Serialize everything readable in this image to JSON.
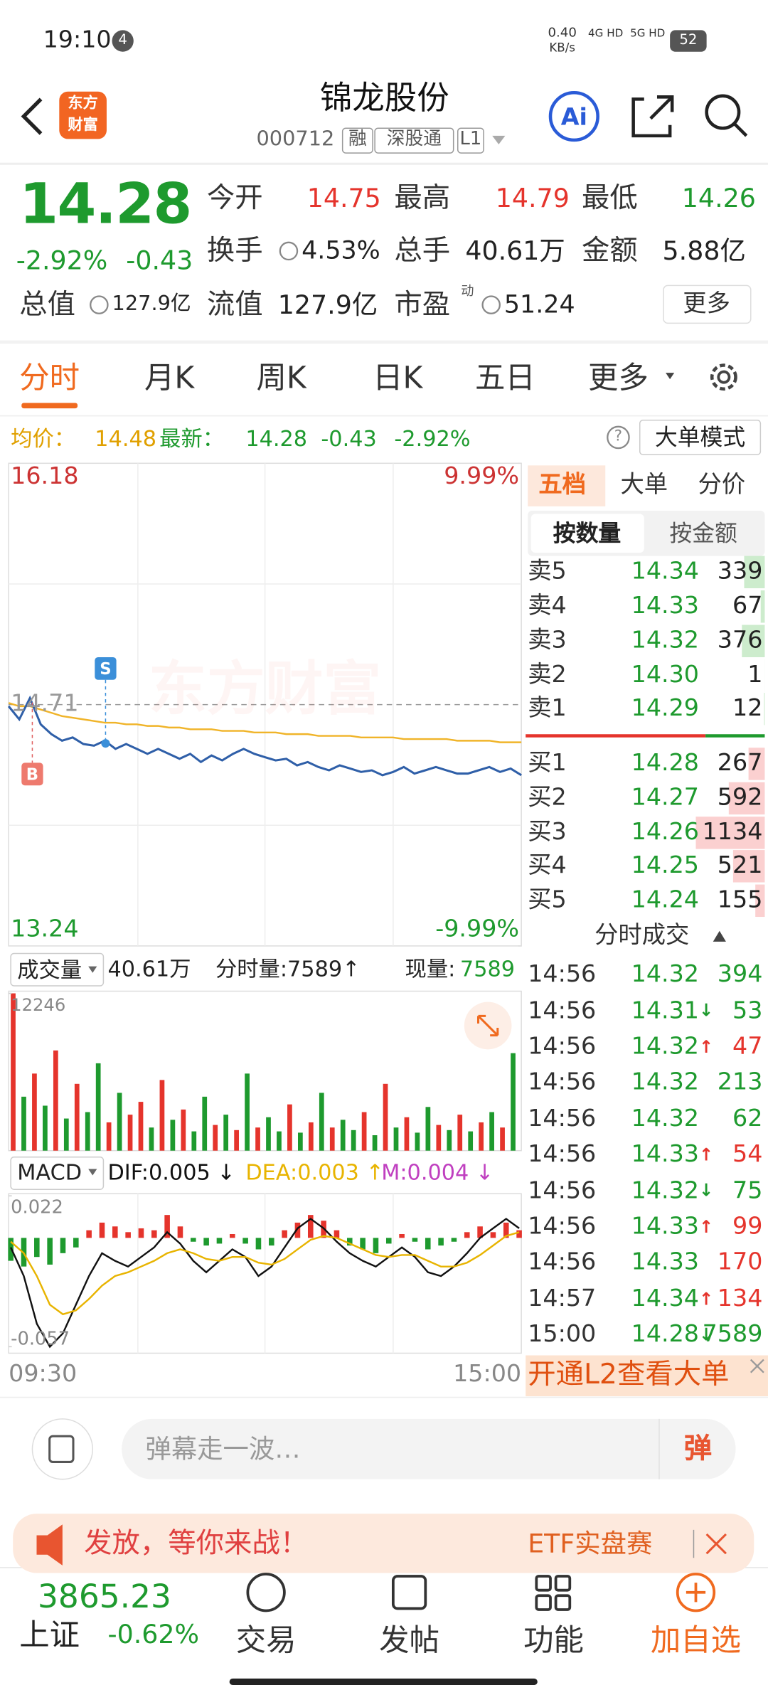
{
  "status_bar": {
    "time": "19:10",
    "notification_count": "4",
    "net_speed": "0.40",
    "net_unit": "KB/s",
    "signal_1": "4G HD",
    "signal_2": "5G HD",
    "battery": "52"
  },
  "header": {
    "logo_line_1": "东方",
    "logo_line_2": "财富",
    "title": "锦龙股份",
    "code": "000712",
    "tags": [
      "融",
      "深股通",
      "L1"
    ]
  },
  "quote": {
    "price": "14.28",
    "change_pct": "-2.92%",
    "change": "-0.43",
    "fields": [
      {
        "label": "今开",
        "value": "14.75"
      },
      {
        "label": "最高",
        "value": "14.79"
      },
      {
        "label": "最低",
        "value": "14.26"
      },
      {
        "label": "换手",
        "value": "4.53%"
      },
      {
        "label": "总手",
        "value": "40.61万"
      },
      {
        "label": "金额",
        "value": "5.88亿"
      },
      {
        "label": "总值",
        "value": "127.9亿"
      },
      {
        "label": "流值",
        "value": "127.9亿"
      },
      {
        "label": "市盈",
        "superscript": "动",
        "value": "51.24"
      }
    ],
    "more": "更多"
  },
  "tabs": [
    "分时",
    "月K",
    "周K",
    "日K",
    "五日",
    "更多"
  ],
  "summary": {
    "avg_label": "均价：",
    "avg": "14.48",
    "latest_label": "最新：",
    "latest": "14.28",
    "change": "-0.43",
    "change_pct": "-2.92%",
    "help": "?",
    "mode": "大单模式"
  },
  "chart_data": [
    {
      "type": "line",
      "watermark": "东方财富",
      "markers": [
        "S",
        "B"
      ],
      "categories": [
        "09:30",
        null,
        null,
        null,
        null,
        null,
        null,
        null,
        null,
        null,
        null,
        null,
        null,
        null,
        null,
        null,
        null,
        null,
        null,
        null,
        null,
        null,
        null,
        null,
        null,
        null,
        null,
        null,
        null,
        null,
        null,
        null,
        null,
        null,
        null,
        null,
        null,
        null,
        null,
        null,
        null,
        null,
        null,
        null,
        null,
        null,
        null,
        null,
        "15:00"
      ],
      "series": [
        {
          "color": "#2f5fa8",
          "values": [
            14.7,
            14.62,
            14.75,
            14.59,
            14.53,
            14.49,
            14.51,
            14.47,
            14.46,
            14.49,
            14.44,
            14.47,
            14.44,
            14.41,
            14.44,
            14.41,
            14.38,
            14.41,
            14.36,
            14.4,
            14.37,
            14.41,
            14.44,
            14.41,
            14.39,
            14.37,
            14.38,
            14.34,
            14.36,
            14.33,
            14.31,
            14.34,
            14.32,
            14.3,
            14.31,
            14.28,
            14.3,
            14.33,
            14.29,
            14.31,
            14.33,
            14.31,
            14.29,
            14.29,
            14.31,
            14.33,
            14.3,
            14.32,
            14.28
          ]
        },
        {
          "color": "#f0b429",
          "values": [
            14.72,
            14.7,
            14.7,
            14.68,
            14.66,
            14.64,
            14.63,
            14.62,
            14.61,
            14.6,
            14.6,
            14.59,
            14.59,
            14.58,
            14.58,
            14.57,
            14.57,
            14.56,
            14.56,
            14.56,
            14.55,
            14.55,
            14.55,
            14.54,
            14.54,
            14.54,
            14.53,
            14.53,
            14.53,
            14.52,
            14.52,
            14.52,
            14.52,
            14.51,
            14.51,
            14.51,
            14.51,
            14.5,
            14.5,
            14.5,
            14.5,
            14.5,
            14.49,
            14.49,
            14.49,
            14.49,
            14.48,
            14.48,
            14.48
          ]
        }
      ],
      "ylim": [
        13.24,
        16.18
      ],
      "yticks": [
        16.18,
        14.71,
        13.24
      ],
      "y2lim": [
        -9.99,
        9.99
      ],
      "y2ticks": [
        {
          "value": 9.99,
          "label": "9.99%"
        },
        {
          "value": -9.99,
          "label": "-9.99%"
        }
      ]
    },
    {
      "type": "bar",
      "title": "成交量",
      "total": "40.61万",
      "minute_volume": "分时量:7589↑",
      "current_label": "现量:",
      "current": "7589",
      "values": [
        12246,
        4200,
        6000,
        3500,
        7800,
        2500,
        5200,
        3000,
        6800,
        2200,
        4500,
        2800,
        3800,
        1800,
        5500,
        2400,
        3200,
        1500,
        4200,
        2000,
        2800,
        1600,
        6000,
        1800,
        2600,
        1500,
        3600,
        1400,
        2200,
        4500,
        1800,
        2400,
        1600,
        3000,
        1200,
        5200,
        1800,
        2600,
        1400,
        3400,
        2000,
        1600,
        2800,
        1500,
        2200,
        3000,
        1800,
        7589
      ],
      "colors": [
        "#e5342c",
        "#1e9a2e",
        "#e5342c",
        "#1e9a2e",
        "#e5342c",
        "#1e9a2e",
        "#e5342c",
        "#1e9a2e",
        "#1e9a2e",
        "#e5342c",
        "#1e9a2e",
        "#e5342c",
        "#e5342c",
        "#1e9a2e",
        "#e5342c",
        "#1e9a2e",
        "#e5342c",
        "#1e9a2e",
        "#1e9a2e",
        "#e5342c",
        "#1e9a2e",
        "#e5342c",
        "#1e9a2e",
        "#e5342c",
        "#1e9a2e",
        "#1e9a2e",
        "#e5342c",
        "#1e9a2e",
        "#e5342c",
        "#1e9a2e",
        "#e5342c",
        "#1e9a2e",
        "#1e9a2e",
        "#e5342c",
        "#1e9a2e",
        "#e5342c",
        "#1e9a2e",
        "#e5342c",
        "#1e9a2e",
        "#1e9a2e",
        "#e5342c",
        "#1e9a2e",
        "#e5342c",
        "#1e9a2e",
        "#e5342c",
        "#1e9a2e",
        "#e5342c",
        "#1e9a2e"
      ],
      "ylim": [
        0,
        12246
      ],
      "yticks": [
        12246
      ]
    },
    {
      "type": "macd",
      "title": "MACD",
      "up_color": "#e5342c",
      "down_color": "#1e9a2e",
      "series": [
        {
          "name": "DIF:0.005 ↓",
          "color": "#111111",
          "values": [
            -0.005,
            -0.02,
            -0.045,
            -0.057,
            -0.05,
            -0.035,
            -0.02,
            -0.008,
            -0.012,
            -0.015,
            -0.01,
            -0.005,
            0.003,
            -0.003,
            -0.012,
            -0.018,
            -0.012,
            -0.006,
            -0.01,
            -0.02,
            -0.015,
            -0.005,
            0.005,
            0.01,
            0.005,
            -0.002,
            -0.008,
            -0.012,
            -0.015,
            -0.01,
            -0.005,
            -0.01,
            -0.018,
            -0.02,
            -0.015,
            -0.008,
            0.0,
            0.005,
            0.01,
            0.005
          ]
        },
        {
          "name": "DEA:0.003 ↑",
          "color": "#e8b400",
          "values": [
            -0.002,
            -0.008,
            -0.02,
            -0.035,
            -0.04,
            -0.038,
            -0.032,
            -0.025,
            -0.02,
            -0.018,
            -0.015,
            -0.012,
            -0.008,
            -0.006,
            -0.008,
            -0.011,
            -0.012,
            -0.01,
            -0.01,
            -0.013,
            -0.014,
            -0.011,
            -0.006,
            -0.001,
            0.001,
            0.0,
            -0.003,
            -0.006,
            -0.009,
            -0.01,
            -0.009,
            -0.009,
            -0.012,
            -0.015,
            -0.015,
            -0.013,
            -0.009,
            -0.004,
            0.001,
            0.003
          ]
        },
        {
          "name": "M:0.004 ↓",
          "color": "#c040c0",
          "values": [
            -0.012,
            -0.015,
            -0.01,
            -0.014,
            -0.008,
            -0.005,
            0.004,
            0.008,
            0.006,
            0.003,
            0.005,
            0.004,
            0.012,
            0.006,
            -0.002,
            -0.004,
            -0.003,
            0.002,
            -0.003,
            -0.006,
            -0.004,
            0.004,
            0.008,
            0.012,
            0.009,
            0.004,
            -0.004,
            -0.006,
            -0.008,
            -0.003,
            0.002,
            -0.002,
            -0.006,
            -0.004,
            -0.002,
            0.003,
            0.006,
            0.003,
            0.008,
            0.004
          ]
        }
      ],
      "ylim": [
        -0.057,
        0.022
      ],
      "yticks": [
        0.022,
        -0.057
      ]
    }
  ],
  "order_book": {
    "tabs": [
      "五档",
      "大单",
      "分价"
    ],
    "sub_tabs": [
      "按数量",
      "按金额"
    ],
    "asks": [
      {
        "label": "卖5",
        "price": "14.34",
        "volume": 339
      },
      {
        "label": "卖4",
        "price": "14.33",
        "volume": 67
      },
      {
        "label": "卖3",
        "price": "14.32",
        "volume": 376
      },
      {
        "label": "卖2",
        "price": "14.30",
        "volume": 1
      },
      {
        "label": "卖1",
        "price": "14.29",
        "volume": 12
      }
    ],
    "bids": [
      {
        "label": "买1",
        "price": "14.28",
        "volume": 267
      },
      {
        "label": "买2",
        "price": "14.27",
        "volume": 592
      },
      {
        "label": "买3",
        "price": "14.26",
        "volume": 1134
      },
      {
        "label": "买4",
        "price": "14.25",
        "volume": 521
      },
      {
        "label": "买5",
        "price": "14.24",
        "volume": 155
      }
    ],
    "trades_title": "分时成交",
    "trades": [
      {
        "time": "14:56",
        "price": "14.32",
        "volume": "394",
        "color": "#1e9a2e"
      },
      {
        "time": "14:56",
        "price": "14.31",
        "arrow": "↓",
        "volume": "53",
        "color": "#1e9a2e"
      },
      {
        "time": "14:56",
        "price": "14.32",
        "arrow": "↑",
        "volume": "47",
        "color": "#e5342c"
      },
      {
        "time": "14:56",
        "price": "14.32",
        "volume": "213",
        "color": "#1e9a2e"
      },
      {
        "time": "14:56",
        "price": "14.32",
        "volume": "62",
        "color": "#1e9a2e"
      },
      {
        "time": "14:56",
        "price": "14.33",
        "arrow": "↑",
        "volume": "54",
        "color": "#e5342c"
      },
      {
        "time": "14:56",
        "price": "14.32",
        "arrow": "↓",
        "volume": "75",
        "color": "#1e9a2e"
      },
      {
        "time": "14:56",
        "price": "14.33",
        "arrow": "↑",
        "volume": "99",
        "color": "#e5342c"
      },
      {
        "time": "14:56",
        "price": "14.33",
        "volume": "170",
        "color": "#e5342c"
      },
      {
        "time": "14:57",
        "price": "14.34",
        "arrow": "↑",
        "volume": "134",
        "color": "#e5342c"
      },
      {
        "time": "15:00",
        "price": "14.28",
        "arrow": "↓",
        "volume": "7589",
        "color": "#1e9a2e"
      }
    ],
    "promo": "开通L2查看大单"
  },
  "comment": {
    "placeholder": "弹幕走一波…",
    "button": "弹"
  },
  "banner": {
    "text": "发放，等你来战！",
    "tag": "ETF实盘赛"
  },
  "nav": {
    "index_value": "3865.23",
    "index_name": "上证",
    "index_change": "-0.62%",
    "items": [
      "交易",
      "发帖",
      "功能",
      "加自选"
    ]
  }
}
